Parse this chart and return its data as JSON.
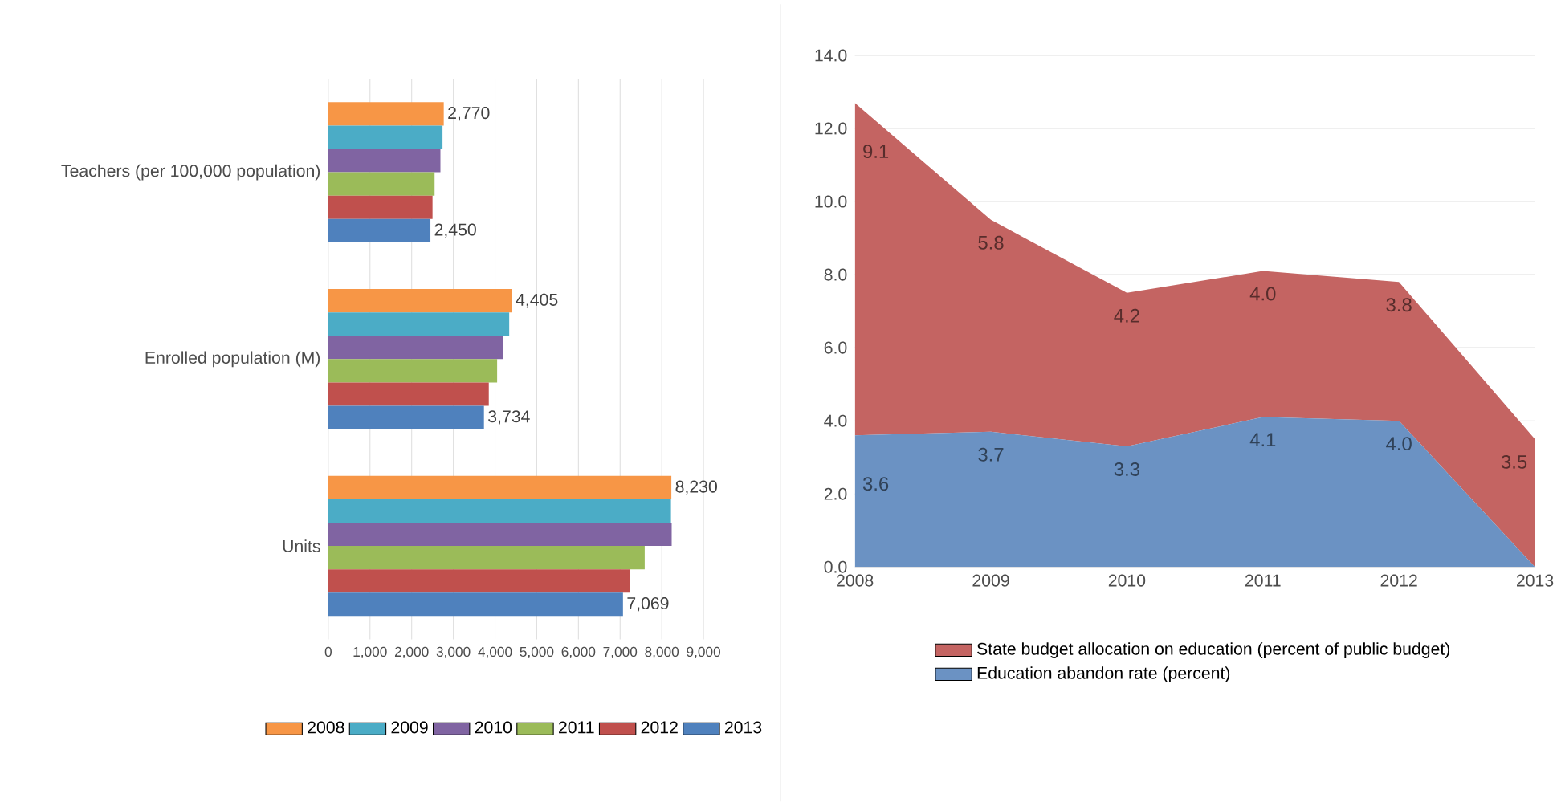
{
  "chart_data": [
    {
      "type": "bar",
      "orientation": "horizontal",
      "categories": [
        "Teachers (per 100,000 population)",
        "Enrolled population (M)",
        "Units"
      ],
      "series": [
        {
          "name": "2008",
          "color": "#f79646",
          "values": [
            2770,
            4405,
            8230
          ],
          "value_labels": [
            "2,770",
            "4,405",
            "8,230"
          ]
        },
        {
          "name": "2009",
          "color": "#4bacc6",
          "values": [
            2740,
            4340,
            8220
          ],
          "value_labels": [
            null,
            null,
            null
          ]
        },
        {
          "name": "2010",
          "color": "#8064a2",
          "values": [
            2690,
            4200,
            8240
          ],
          "value_labels": [
            null,
            null,
            null
          ]
        },
        {
          "name": "2011",
          "color": "#9bbb59",
          "values": [
            2550,
            4050,
            7590
          ],
          "value_labels": [
            null,
            null,
            null
          ]
        },
        {
          "name": "2012",
          "color": "#c0504d",
          "values": [
            2500,
            3850,
            7240
          ],
          "value_labels": [
            null,
            null,
            null
          ]
        },
        {
          "name": "2013",
          "color": "#4f81bd",
          "values": [
            2450,
            3734,
            7069
          ],
          "value_labels": [
            "2,450",
            "3,734",
            "7,069"
          ]
        }
      ],
      "xlim": [
        0,
        9000
      ],
      "xticks": [
        0,
        {
          "value": 1000,
          "label": "1,000"
        },
        {
          "value": 2000,
          "label": "2,000"
        },
        {
          "value": 3000,
          "label": "3,000"
        },
        {
          "value": 4000,
          "label": "4,000"
        },
        {
          "value": 5000,
          "label": "5,000"
        },
        {
          "value": 6000,
          "label": "6,000"
        },
        {
          "value": 7000,
          "label": "7,000"
        },
        {
          "value": 8000,
          "label": "8,000"
        },
        {
          "value": 9000,
          "label": "9,000"
        }
      ],
      "grid": "x",
      "legend": "bottom"
    },
    {
      "type": "area",
      "stacked": true,
      "categories": [
        "2008",
        "2009",
        "2010",
        "2011",
        "2012",
        "2013"
      ],
      "series": [
        {
          "name": "Education abandon rate (percent)",
          "color": "#6b92c3",
          "values": [
            3.6,
            3.7,
            3.3,
            4.1,
            4.0,
            0
          ],
          "value_labels": [
            "3.6",
            "3.7",
            "3.3",
            "4.1",
            "4.0",
            null
          ]
        },
        {
          "name": "State budget allocation on education (percent of public budget)",
          "color": "#c46462",
          "values": [
            9.1,
            5.8,
            4.2,
            4.0,
            3.8,
            3.5
          ],
          "value_labels": [
            "9.1",
            "5.8",
            "4.2",
            "4.0",
            "3.8",
            "3.5"
          ]
        }
      ],
      "ylim": [
        0,
        14
      ],
      "yticks": [
        {
          "value": 0,
          "label": "0.0"
        },
        {
          "value": 2,
          "label": "2.0"
        },
        {
          "value": 4,
          "label": "4.0"
        },
        {
          "value": 6,
          "label": "6.0"
        },
        {
          "value": 8,
          "label": "8.0"
        },
        {
          "value": 10,
          "label": "10.0"
        },
        {
          "value": 12,
          "label": "12.0"
        },
        {
          "value": 14,
          "label": "14.0"
        }
      ],
      "grid": "y",
      "legend": "bottom"
    }
  ]
}
